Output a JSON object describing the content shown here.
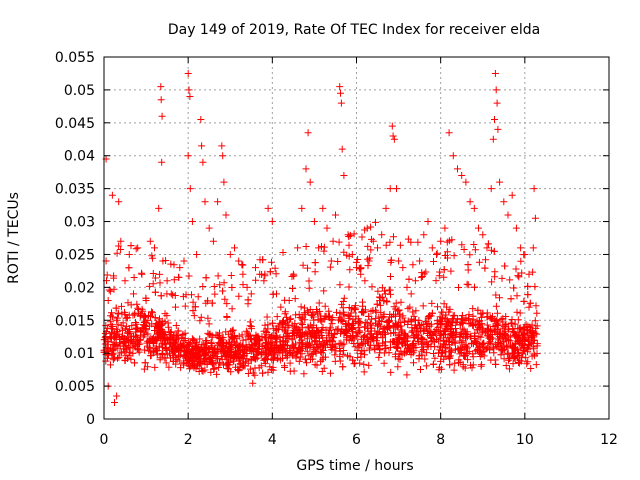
{
  "chart_data": {
    "type": "scatter",
    "title": "Day 149 of 2019, Rate Of TEC Index for receiver elda",
    "xlabel": "GPS time / hours",
    "ylabel": "ROTI / TECUs",
    "xlim": [
      0,
      12
    ],
    "ylim": [
      0,
      0.055
    ],
    "xticks": [
      0,
      2,
      4,
      6,
      8,
      10,
      12
    ],
    "xtick_labels": [
      "0",
      "2",
      "4",
      "6",
      "8",
      "10",
      "12"
    ],
    "yticks": [
      0,
      0.005,
      0.01,
      0.015,
      0.02,
      0.025,
      0.03,
      0.035,
      0.04,
      0.045,
      0.05,
      0.055
    ],
    "ytick_labels": [
      "0",
      "0.005",
      "0.01",
      "0.015",
      "0.02",
      "0.025",
      "0.03",
      "0.035",
      "0.04",
      "0.045",
      "0.05",
      "0.055"
    ],
    "grid": true,
    "marker": "+",
    "color": "#ff0000",
    "series": [
      {
        "name": "ROTI",
        "points": [
          [
            0.05,
            0.0395
          ],
          [
            0.05,
            0.024
          ],
          [
            0.1,
            0.018
          ],
          [
            0.1,
            0.005
          ],
          [
            0.2,
            0.034
          ],
          [
            0.25,
            0.0025
          ],
          [
            0.3,
            0.0035
          ],
          [
            0.35,
            0.033
          ],
          [
            0.4,
            0.027
          ],
          [
            0.5,
            0.021
          ],
          [
            0.6,
            0.025
          ],
          [
            0.7,
            0.019
          ],
          [
            0.8,
            0.026
          ],
          [
            0.9,
            0.022
          ],
          [
            1.0,
            0.018
          ],
          [
            1.1,
            0.027
          ],
          [
            1.2,
            0.026
          ],
          [
            1.3,
            0.032
          ],
          [
            1.35,
            0.0505
          ],
          [
            1.36,
            0.0485
          ],
          [
            1.38,
            0.046
          ],
          [
            1.37,
            0.039
          ],
          [
            1.4,
            0.024
          ],
          [
            1.5,
            0.021
          ],
          [
            1.6,
            0.019
          ],
          [
            1.7,
            0.017
          ],
          [
            1.8,
            0.023
          ],
          [
            1.9,
            0.024
          ],
          [
            2.0,
            0.0525
          ],
          [
            2.02,
            0.05
          ],
          [
            2.04,
            0.049
          ],
          [
            2.0,
            0.04
          ],
          [
            2.05,
            0.035
          ],
          [
            2.1,
            0.03
          ],
          [
            2.2,
            0.025
          ],
          [
            2.3,
            0.0455
          ],
          [
            2.32,
            0.0415
          ],
          [
            2.35,
            0.039
          ],
          [
            2.4,
            0.033
          ],
          [
            2.5,
            0.029
          ],
          [
            2.6,
            0.027
          ],
          [
            2.7,
            0.033
          ],
          [
            2.8,
            0.0415
          ],
          [
            2.82,
            0.04
          ],
          [
            2.85,
            0.036
          ],
          [
            2.9,
            0.031
          ],
          [
            3.0,
            0.025
          ],
          [
            3.1,
            0.026
          ],
          [
            3.2,
            0.024
          ],
          [
            3.3,
            0.022
          ],
          [
            3.4,
            0.02
          ],
          [
            3.5,
            0.019
          ],
          [
            3.6,
            0.023
          ],
          [
            3.7,
            0.022
          ],
          [
            3.8,
            0.021
          ],
          [
            3.9,
            0.032
          ],
          [
            4.0,
            0.03
          ],
          [
            4.1,
            0.019
          ],
          [
            4.2,
            0.017
          ],
          [
            4.3,
            0.016
          ],
          [
            4.4,
            0.018
          ],
          [
            4.5,
            0.022
          ],
          [
            4.6,
            0.026
          ],
          [
            4.7,
            0.032
          ],
          [
            4.8,
            0.038
          ],
          [
            4.85,
            0.0435
          ],
          [
            4.9,
            0.036
          ],
          [
            5.0,
            0.03
          ],
          [
            5.1,
            0.026
          ],
          [
            5.2,
            0.032
          ],
          [
            5.3,
            0.029
          ],
          [
            5.4,
            0.024
          ],
          [
            5.5,
            0.031
          ],
          [
            5.6,
            0.0505
          ],
          [
            5.62,
            0.0495
          ],
          [
            5.64,
            0.048
          ],
          [
            5.66,
            0.041
          ],
          [
            5.7,
            0.037
          ],
          [
            5.8,
            0.028
          ],
          [
            5.9,
            0.025
          ],
          [
            6.0,
            0.023
          ],
          [
            6.1,
            0.022
          ],
          [
            6.2,
            0.021
          ],
          [
            6.3,
            0.024
          ],
          [
            6.4,
            0.027
          ],
          [
            6.5,
            0.026
          ],
          [
            6.6,
            0.028
          ],
          [
            6.7,
            0.032
          ],
          [
            6.8,
            0.035
          ],
          [
            6.85,
            0.0445
          ],
          [
            6.87,
            0.043
          ],
          [
            6.9,
            0.0425
          ],
          [
            6.95,
            0.035
          ],
          [
            7.0,
            0.024
          ],
          [
            7.1,
            0.023
          ],
          [
            7.2,
            0.02
          ],
          [
            7.3,
            0.019
          ],
          [
            7.4,
            0.021
          ],
          [
            7.5,
            0.024
          ],
          [
            7.6,
            0.028
          ],
          [
            7.7,
            0.03
          ],
          [
            7.8,
            0.026
          ],
          [
            7.9,
            0.025
          ],
          [
            8.0,
            0.027
          ],
          [
            8.1,
            0.029
          ],
          [
            8.2,
            0.0435
          ],
          [
            8.3,
            0.04
          ],
          [
            8.4,
            0.038
          ],
          [
            8.5,
            0.037
          ],
          [
            8.6,
            0.036
          ],
          [
            8.7,
            0.033
          ],
          [
            8.8,
            0.032
          ],
          [
            8.9,
            0.029
          ],
          [
            9.0,
            0.028
          ],
          [
            9.1,
            0.026
          ],
          [
            9.2,
            0.035
          ],
          [
            9.25,
            0.0425
          ],
          [
            9.28,
            0.0455
          ],
          [
            9.3,
            0.0525
          ],
          [
            9.32,
            0.05
          ],
          [
            9.34,
            0.048
          ],
          [
            9.36,
            0.044
          ],
          [
            9.4,
            0.036
          ],
          [
            9.5,
            0.033
          ],
          [
            9.6,
            0.031
          ],
          [
            9.7,
            0.034
          ],
          [
            9.8,
            0.029
          ],
          [
            9.9,
            0.026
          ],
          [
            10.0,
            0.025
          ],
          [
            10.1,
            0.022
          ],
          [
            10.2,
            0.026
          ],
          [
            10.22,
            0.035
          ],
          [
            10.25,
            0.0305
          ]
        ]
      }
    ],
    "band": {
      "description": "dense noise of ROTI samples between 0.005 and 0.016 TECU/s over 0-10.3 h",
      "x_range": [
        0.0,
        10.3
      ],
      "y_base_range": [
        0.005,
        0.016
      ],
      "upper_envelope": [
        [
          0.0,
          0.019
        ],
        [
          0.5,
          0.02
        ],
        [
          1.0,
          0.02
        ],
        [
          1.5,
          0.018
        ],
        [
          2.0,
          0.014
        ],
        [
          2.5,
          0.014
        ],
        [
          3.0,
          0.015
        ],
        [
          3.5,
          0.016
        ],
        [
          4.0,
          0.017
        ],
        [
          4.5,
          0.018
        ],
        [
          5.0,
          0.019
        ],
        [
          5.5,
          0.02
        ],
        [
          6.0,
          0.021
        ],
        [
          6.5,
          0.022
        ],
        [
          7.0,
          0.021
        ],
        [
          7.5,
          0.019
        ],
        [
          8.0,
          0.02
        ],
        [
          8.5,
          0.019
        ],
        [
          9.0,
          0.02
        ],
        [
          9.5,
          0.018
        ],
        [
          10.0,
          0.017
        ],
        [
          10.3,
          0.016
        ]
      ],
      "lower_envelope": [
        [
          0.0,
          0.005
        ],
        [
          0.5,
          0.005
        ],
        [
          1.0,
          0.006
        ],
        [
          1.5,
          0.006
        ],
        [
          2.0,
          0.006
        ],
        [
          2.5,
          0.006
        ],
        [
          3.0,
          0.006
        ],
        [
          3.5,
          0.005
        ],
        [
          4.0,
          0.006
        ],
        [
          4.5,
          0.006
        ],
        [
          5.0,
          0.006
        ],
        [
          5.5,
          0.006
        ],
        [
          6.0,
          0.006
        ],
        [
          6.5,
          0.006
        ],
        [
          7.0,
          0.006
        ],
        [
          7.5,
          0.006
        ],
        [
          8.0,
          0.006
        ],
        [
          8.5,
          0.005
        ],
        [
          9.0,
          0.006
        ],
        [
          9.5,
          0.006
        ],
        [
          10.0,
          0.006
        ],
        [
          10.3,
          0.007
        ]
      ]
    }
  }
}
